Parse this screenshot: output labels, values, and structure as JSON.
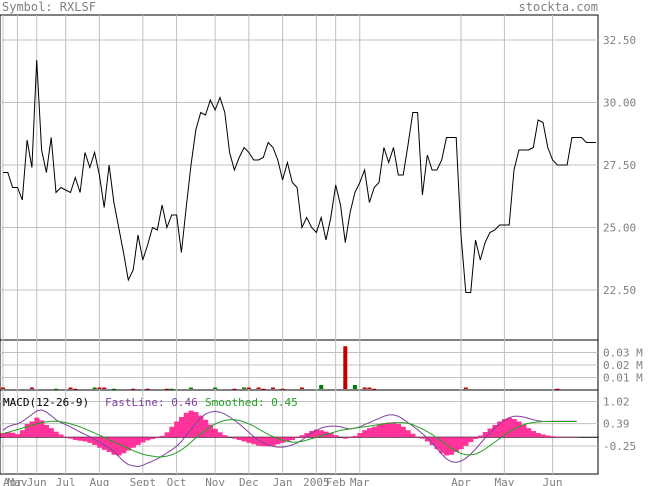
{
  "header": {
    "symbol": "Symbol: RXLSF",
    "site": "stockta.com"
  },
  "colors": {
    "header_text": "#808080",
    "grid": "#c0c0c0",
    "price_line": "#000000",
    "vol_up": "#008000",
    "vol_down": "#c00000",
    "macd_hist": "#ff3399",
    "fast_line": "#8040a0",
    "smooth_line": "#20a020",
    "axis_text": "#808080"
  },
  "chart_data": [
    {
      "type": "line",
      "name": "price",
      "ylim": [
        20.5,
        33.5
      ],
      "yticks": [
        "32.50",
        "30.00",
        "27.50",
        "25.00",
        "22.50"
      ],
      "ytick_values": [
        32.5,
        30.0,
        27.5,
        25.0,
        22.5
      ],
      "values": [
        27.2,
        27.2,
        26.6,
        26.6,
        26.1,
        28.5,
        27.4,
        31.7,
        28.1,
        27.2,
        28.6,
        26.4,
        26.6,
        26.5,
        26.4,
        27.0,
        26.4,
        28.0,
        27.4,
        28.0,
        27.1,
        25.8,
        27.5,
        26.0,
        25.0,
        24.0,
        22.9,
        23.3,
        24.7,
        23.7,
        24.3,
        25.0,
        24.9,
        25.9,
        25.0,
        25.5,
        25.5,
        24.0,
        25.8,
        27.5,
        28.9,
        29.6,
        29.5,
        30.1,
        29.7,
        30.2,
        29.6,
        28.0,
        27.3,
        27.8,
        28.2,
        28.0,
        27.7,
        27.7,
        27.8,
        28.4,
        28.2,
        27.7,
        26.9,
        27.6,
        26.8,
        26.6,
        25.0,
        25.4,
        25.0,
        24.8,
        25.4,
        24.5,
        25.4,
        26.7,
        25.9,
        24.4,
        25.6,
        26.4,
        26.8,
        27.3,
        26.0,
        26.6,
        26.8,
        28.2,
        27.6,
        28.2,
        27.1,
        27.1,
        28.3,
        29.6,
        29.6,
        26.3,
        27.9,
        27.3,
        27.3,
        27.7,
        28.6,
        28.6,
        28.6,
        24.7,
        22.4,
        22.4,
        24.5,
        23.7,
        24.4,
        24.8,
        24.9,
        25.1,
        25.1,
        25.1,
        27.3,
        28.1,
        28.1,
        28.1,
        28.2,
        29.3,
        29.2,
        28.2,
        27.7,
        27.5,
        27.5,
        27.5,
        28.6,
        28.6,
        28.6,
        28.4,
        28.4,
        28.4
      ]
    },
    {
      "type": "bar",
      "name": "volume",
      "ylim": [
        0,
        0.04
      ],
      "yticks": [
        "0.03 M",
        "0.02 M",
        "0.01 M"
      ],
      "ytick_values": [
        0.03,
        0.02,
        0.01
      ],
      "bars": [
        {
          "i": 0,
          "v": 0.002,
          "up": false
        },
        {
          "i": 6,
          "v": 0.002,
          "up": false
        },
        {
          "i": 11,
          "v": 0.001,
          "up": true
        },
        {
          "i": 14,
          "v": 0.002,
          "up": false
        },
        {
          "i": 15,
          "v": 0.001,
          "up": false
        },
        {
          "i": 19,
          "v": 0.002,
          "up": true
        },
        {
          "i": 20,
          "v": 0.002,
          "up": false
        },
        {
          "i": 21,
          "v": 0.002,
          "up": false
        },
        {
          "i": 23,
          "v": 0.001,
          "up": true
        },
        {
          "i": 27,
          "v": 0.001,
          "up": false
        },
        {
          "i": 30,
          "v": 0.001,
          "up": false
        },
        {
          "i": 34,
          "v": 0.001,
          "up": false
        },
        {
          "i": 35,
          "v": 0.001,
          "up": true
        },
        {
          "i": 39,
          "v": 0.002,
          "up": true
        },
        {
          "i": 44,
          "v": 0.002,
          "up": true
        },
        {
          "i": 48,
          "v": 0.001,
          "up": false
        },
        {
          "i": 50,
          "v": 0.002,
          "up": true
        },
        {
          "i": 51,
          "v": 0.002,
          "up": false
        },
        {
          "i": 53,
          "v": 0.002,
          "up": false
        },
        {
          "i": 54,
          "v": 0.001,
          "up": false
        },
        {
          "i": 56,
          "v": 0.002,
          "up": false
        },
        {
          "i": 58,
          "v": 0.001,
          "up": false
        },
        {
          "i": 62,
          "v": 0.002,
          "up": false
        },
        {
          "i": 66,
          "v": 0.004,
          "up": true
        },
        {
          "i": 71,
          "v": 0.035,
          "up": false
        },
        {
          "i": 73,
          "v": 0.004,
          "up": true
        },
        {
          "i": 75,
          "v": 0.002,
          "up": false
        },
        {
          "i": 76,
          "v": 0.002,
          "up": false
        },
        {
          "i": 77,
          "v": 0.001,
          "up": false
        },
        {
          "i": 96,
          "v": 0.002,
          "up": false
        },
        {
          "i": 115,
          "v": 0.001,
          "up": false
        }
      ]
    },
    {
      "type": "line",
      "name": "macd",
      "title": "MACD(12-26-9)",
      "fast_label": "FastLine: 0.46",
      "smooth_label": "Smoothed: 0.45",
      "ylim": [
        -1.05,
        1.35
      ],
      "yticks": [
        "1.02",
        "0.39",
        "-0.25"
      ],
      "ytick_values": [
        1.02,
        0.39,
        -0.25
      ],
      "hist": [
        0.12,
        0.15,
        0.13,
        0.09,
        0.2,
        0.38,
        0.45,
        0.56,
        0.48,
        0.35,
        0.26,
        0.16,
        0.08,
        0.02,
        -0.04,
        -0.08,
        -0.1,
        -0.12,
        -0.16,
        -0.22,
        -0.3,
        -0.36,
        -0.42,
        -0.5,
        -0.52,
        -0.46,
        -0.38,
        -0.3,
        -0.22,
        -0.15,
        -0.09,
        -0.05,
        -0.02,
        0.04,
        0.14,
        0.3,
        0.45,
        0.58,
        0.7,
        0.76,
        0.72,
        0.62,
        0.5,
        0.36,
        0.24,
        0.14,
        0.06,
        0.0,
        -0.04,
        -0.08,
        -0.12,
        -0.16,
        -0.2,
        -0.24,
        -0.26,
        -0.26,
        -0.24,
        -0.2,
        -0.16,
        -0.12,
        -0.08,
        -0.02,
        0.06,
        0.12,
        0.18,
        0.22,
        0.2,
        0.16,
        0.12,
        0.06,
        0.0,
        -0.04,
        -0.02,
        0.04,
        0.12,
        0.2,
        0.26,
        0.3,
        0.36,
        0.4,
        0.42,
        0.42,
        0.38,
        0.3,
        0.2,
        0.1,
        0.02,
        -0.04,
        -0.12,
        -0.22,
        -0.34,
        -0.46,
        -0.52,
        -0.5,
        -0.42,
        -0.34,
        -0.24,
        -0.14,
        -0.05,
        0.05,
        0.15,
        0.25,
        0.35,
        0.45,
        0.52,
        0.55,
        0.52,
        0.45,
        0.36,
        0.26,
        0.18,
        0.12,
        0.08,
        0.05,
        0.03,
        0.02,
        0.01,
        0.01,
        0.01,
        0.01
      ],
      "fast": [
        0.2,
        0.3,
        0.35,
        0.38,
        0.45,
        0.55,
        0.65,
        0.75,
        0.78,
        0.72,
        0.62,
        0.5,
        0.42,
        0.36,
        0.3,
        0.22,
        0.15,
        0.08,
        0.02,
        -0.06,
        -0.14,
        -0.22,
        -0.3,
        -0.4,
        -0.55,
        -0.68,
        -0.78,
        -0.82,
        -0.84,
        -0.8,
        -0.74,
        -0.68,
        -0.62,
        -0.54,
        -0.45,
        -0.36,
        -0.26,
        -0.12,
        0.05,
        0.22,
        0.4,
        0.55,
        0.66,
        0.72,
        0.74,
        0.72,
        0.66,
        0.58,
        0.48,
        0.38,
        0.26,
        0.14,
        0.02,
        -0.08,
        -0.16,
        -0.22,
        -0.26,
        -0.28,
        -0.28,
        -0.26,
        -0.22,
        -0.16,
        -0.08,
        0.02,
        0.12,
        0.2,
        0.26,
        0.3,
        0.32,
        0.32,
        0.3,
        0.26,
        0.24,
        0.26,
        0.3,
        0.36,
        0.42,
        0.48,
        0.54,
        0.6,
        0.64,
        0.64,
        0.6,
        0.52,
        0.42,
        0.32,
        0.22,
        0.1,
        -0.02,
        -0.16,
        -0.32,
        -0.48,
        -0.62,
        -0.7,
        -0.72,
        -0.68,
        -0.6,
        -0.48,
        -0.34,
        -0.18,
        -0.02,
        0.12,
        0.26,
        0.38,
        0.48,
        0.56,
        0.6,
        0.6,
        0.58,
        0.54,
        0.5,
        0.47,
        0.45,
        0.45,
        0.46,
        0.46,
        0.46,
        0.46,
        0.46,
        0.46
      ],
      "smooth": [
        0.1,
        0.14,
        0.18,
        0.22,
        0.26,
        0.3,
        0.34,
        0.38,
        0.42,
        0.44,
        0.46,
        0.46,
        0.44,
        0.42,
        0.38,
        0.34,
        0.3,
        0.24,
        0.18,
        0.12,
        0.06,
        0.0,
        -0.08,
        -0.14,
        -0.2,
        -0.26,
        -0.32,
        -0.38,
        -0.44,
        -0.48,
        -0.52,
        -0.54,
        -0.56,
        -0.56,
        -0.54,
        -0.5,
        -0.44,
        -0.36,
        -0.26,
        -0.14,
        -0.02,
        0.1,
        0.2,
        0.3,
        0.38,
        0.44,
        0.48,
        0.5,
        0.5,
        0.48,
        0.44,
        0.38,
        0.32,
        0.24,
        0.16,
        0.08,
        0.02,
        -0.04,
        -0.08,
        -0.12,
        -0.14,
        -0.14,
        -0.12,
        -0.08,
        -0.04,
        0.0,
        0.04,
        0.08,
        0.12,
        0.16,
        0.2,
        0.22,
        0.24,
        0.26,
        0.28,
        0.3,
        0.32,
        0.34,
        0.36,
        0.38,
        0.4,
        0.42,
        0.42,
        0.42,
        0.4,
        0.36,
        0.3,
        0.24,
        0.16,
        0.08,
        -0.02,
        -0.12,
        -0.22,
        -0.32,
        -0.4,
        -0.46,
        -0.5,
        -0.5,
        -0.48,
        -0.42,
        -0.34,
        -0.24,
        -0.14,
        -0.04,
        0.06,
        0.16,
        0.24,
        0.3,
        0.36,
        0.4,
        0.42,
        0.44,
        0.45,
        0.45,
        0.45,
        0.45,
        0.45,
        0.45,
        0.45,
        0.45
      ]
    }
  ],
  "x_labels": [
    "Apr",
    "May",
    "Jun",
    "Jul",
    "Aug",
    "Sept",
    "Oct",
    "Nov",
    "Dec",
    "Jan",
    "2005",
    "Feb",
    "Mar",
    "Apr",
    "May",
    "Jun"
  ],
  "x_label_idx": [
    0,
    3,
    7,
    13,
    20,
    29,
    36,
    44,
    51,
    58,
    65,
    69,
    74,
    95,
    104,
    114
  ]
}
